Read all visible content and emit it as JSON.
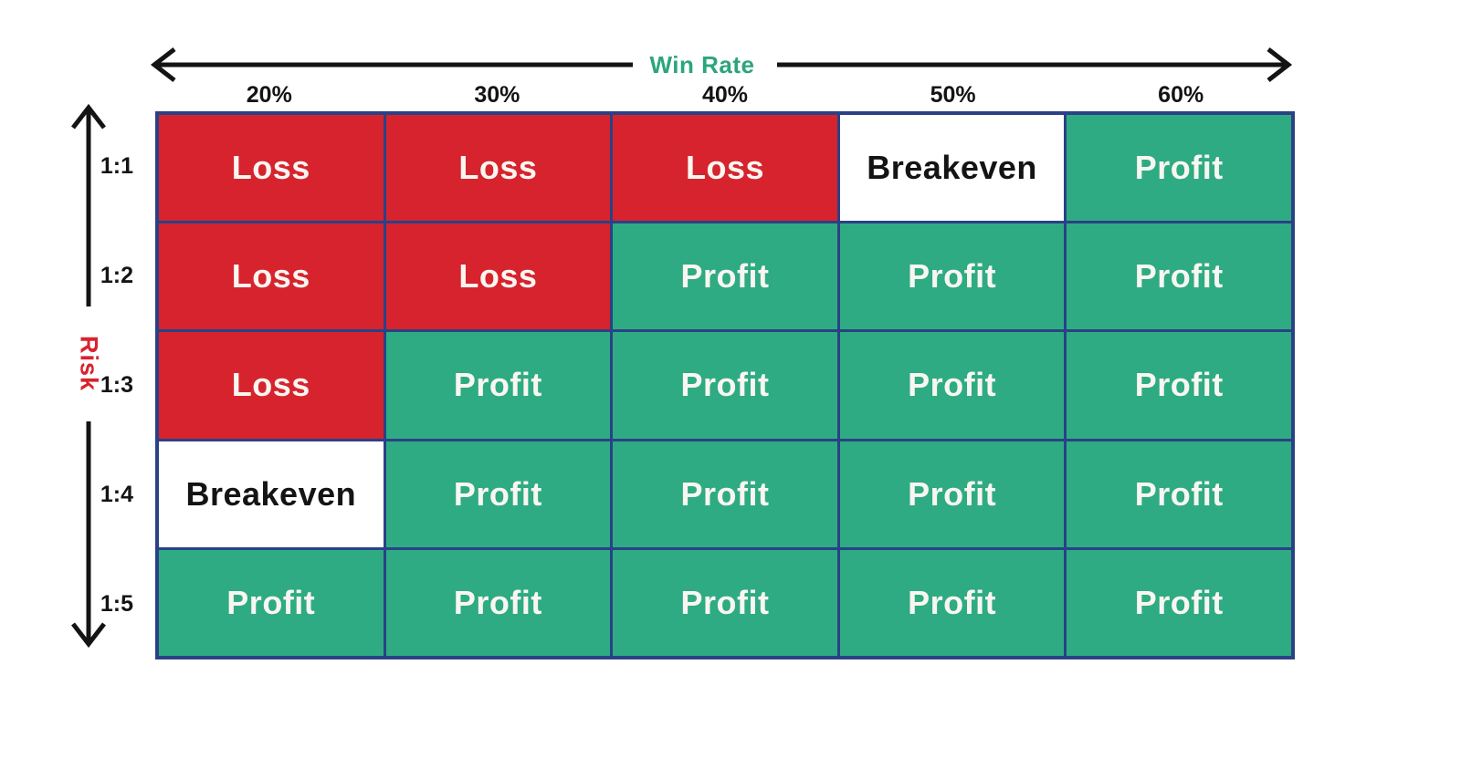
{
  "chart_data": {
    "type": "heatmap",
    "title": "",
    "x_axis": {
      "label": "Win Rate",
      "categories": [
        "20%",
        "30%",
        "40%",
        "50%",
        "60%"
      ]
    },
    "y_axis": {
      "label": "Risk",
      "categories": [
        "1:1",
        "1:2",
        "1:3",
        "1:4",
        "1:5"
      ]
    },
    "cells": [
      [
        "Loss",
        "Loss",
        "Loss",
        "Breakeven",
        "Profit"
      ],
      [
        "Loss",
        "Loss",
        "Profit",
        "Profit",
        "Profit"
      ],
      [
        "Loss",
        "Profit",
        "Profit",
        "Profit",
        "Profit"
      ],
      [
        "Breakeven",
        "Profit",
        "Profit",
        "Profit",
        "Profit"
      ],
      [
        "Profit",
        "Profit",
        "Profit",
        "Profit",
        "Profit"
      ]
    ],
    "value_colors": {
      "Loss": "#D7232D",
      "Breakeven": "#FFFFFF",
      "Profit": "#2EAB83"
    },
    "value_text_colors": {
      "Loss": "#F9F6F1",
      "Breakeven": "#141414",
      "Profit": "#F9F6F1"
    },
    "layout": {
      "grid_border_color": "#2A4186",
      "arrow_color": "#141414",
      "x_axis_label_color": "#2BA57D",
      "y_axis_label_color": "#D8232E",
      "background_color": "#FFFFFF",
      "legend": "none",
      "gridlines": "cell borders only"
    }
  }
}
